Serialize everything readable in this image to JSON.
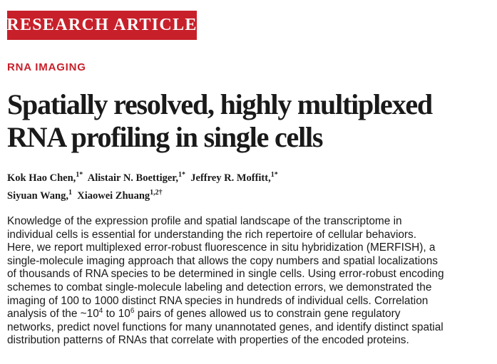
{
  "banner": {
    "label": "RESEARCH ARTICLE"
  },
  "section_label": "RNA IMAGING",
  "title": {
    "line1": "Spatially resolved, highly multiplexed",
    "line2": "RNA profiling in single cells"
  },
  "authors": [
    {
      "name": "Kok Hao Chen,",
      "affil": "1",
      "mark": "*"
    },
    {
      "name": "Alistair N. Boettiger,",
      "affil": "1",
      "mark": "*"
    },
    {
      "name": "Jeffrey R. Moffitt,",
      "affil": "1",
      "mark": "*"
    },
    {
      "name": "Siyuan Wang,",
      "affil": "1",
      "mark": ""
    },
    {
      "name": "Xiaowei Zhuang",
      "affil": "1,2",
      "mark": "†"
    }
  ],
  "abstract": {
    "l1": "Knowledge of the expression profile and spatial landscape of the transcriptome in",
    "l2": "individual cells is essential for understanding the rich repertoire of cellular behaviors.",
    "l3": "Here, we report multiplexed error-robust fluorescence in situ hybridization (MERFISH), a",
    "l4": "single-molecule imaging approach that allows the copy numbers and spatial localizations",
    "l5": "of thousands of RNA species to be determined in single cells. Using error-robust encoding",
    "l6": "schemes to combat single-molecule labeling and detection errors, we demonstrated the",
    "l7": "imaging of 100 to 1000 distinct RNA species in hundreds of individual cells. Correlation",
    "l8_a": "analysis of the ~10",
    "l8_sup1": "4",
    "l8_b": " to 10",
    "l8_sup2": "6",
    "l8_c": " pairs of genes allowed us to constrain gene regulatory",
    "l9": "networks, predict novel functions for many unannotated genes, and identify distinct spatial",
    "l10": "distribution patterns of RNAs that correlate with properties of the encoded proteins."
  }
}
